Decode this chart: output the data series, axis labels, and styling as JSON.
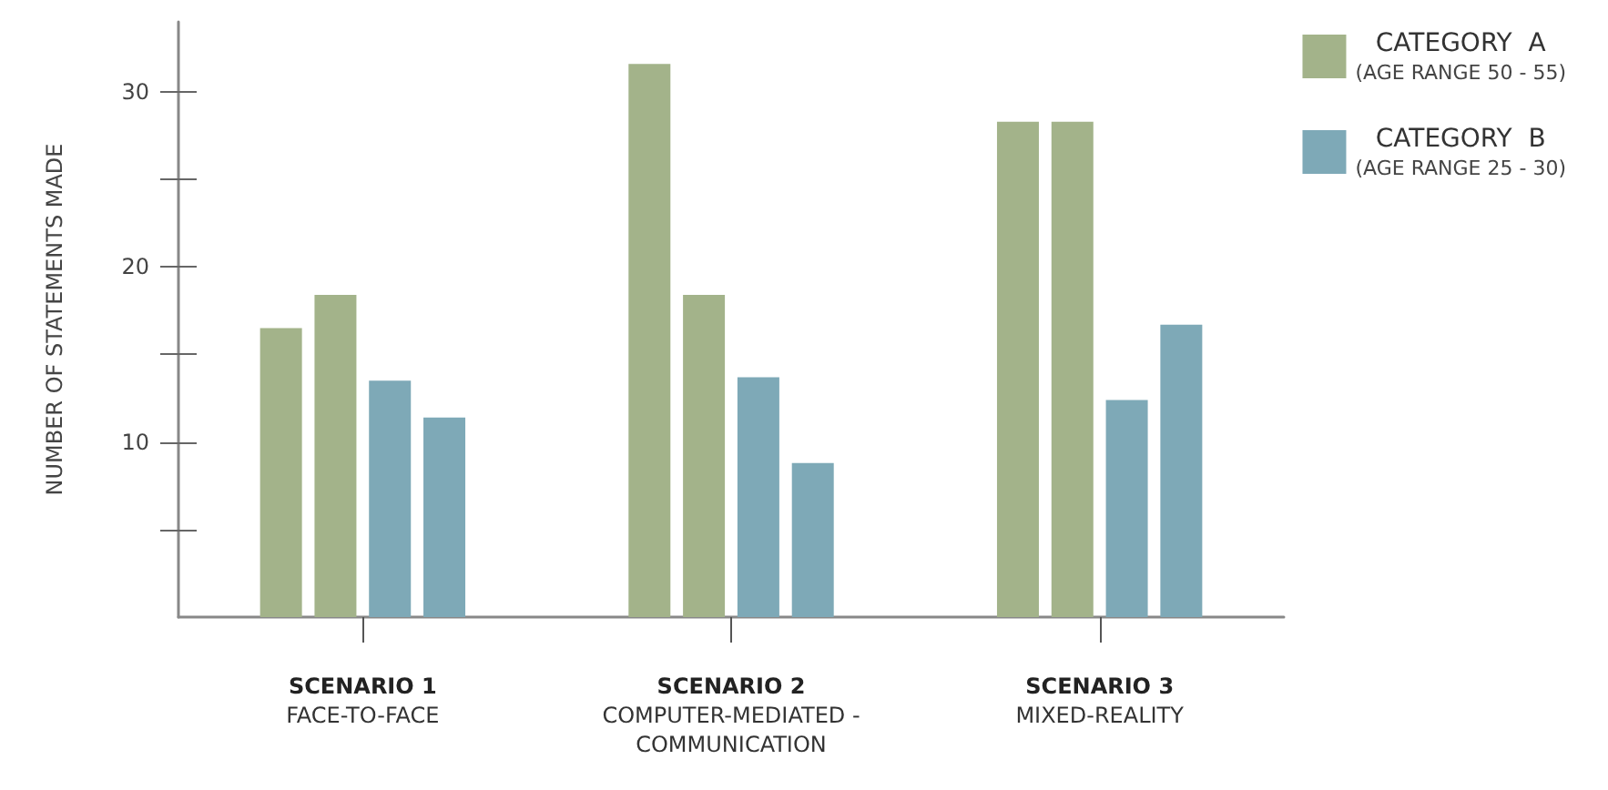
{
  "chart_data": {
    "type": "bar",
    "categories": [
      "SCENARIO 1\nFACE-TO-FACE",
      "SCENARIO 2\nCOMPUTER-MEDIATED -\nCOMMUNICATION",
      "SCENARIO 3\nMIXED-REALITY"
    ],
    "series": [
      {
        "name": "CATEGORY  A\n(AGE RANGE 50 - 55)",
        "color": "#a3b38a",
        "values": [
          16.5,
          31.6,
          28.3
        ]
      },
      {
        "color": "#a3b38a",
        "values": [
          18.4,
          18.4,
          28.3
        ]
      },
      {
        "name": "CATEGORY  B\n(AGE RANGE 25 - 30)",
        "color": "#7ea9b7",
        "values": [
          13.5,
          13.7,
          12.4
        ]
      },
      {
        "color": "#7ea9b7",
        "values": [
          11.4,
          8.8,
          16.7
        ]
      }
    ],
    "ylabel": "NUMBER OF STATEMENTS MADE",
    "ylim": [
      0,
      34
    ],
    "yticks": [
      {
        "value": 5,
        "label": null
      },
      10,
      {
        "value": 15,
        "label": null
      },
      20,
      {
        "value": 25,
        "label": null
      },
      30
    ],
    "grid": false,
    "legend": "top right"
  }
}
